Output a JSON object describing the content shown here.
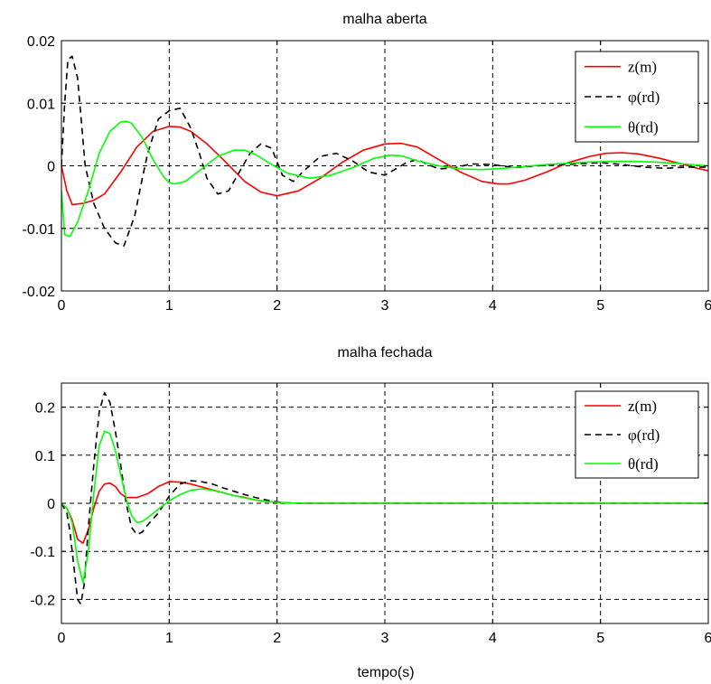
{
  "xlabel": "tempo(s)",
  "chart_data": [
    {
      "type": "line",
      "title": "malha aberta",
      "xlabel": "",
      "ylabel": "",
      "xlim": [
        0,
        6
      ],
      "ylim": [
        -0.02,
        0.02
      ],
      "xticks": [
        0,
        1,
        2,
        3,
        4,
        5,
        6
      ],
      "xtick_labels": [
        "0",
        "1",
        "2",
        "3",
        "4",
        "5",
        "6"
      ],
      "yticks": [
        -0.02,
        -0.01,
        0,
        0.01,
        0.02
      ],
      "ytick_labels": [
        "-0.02",
        "-0.01",
        "0",
        "0.01",
        "0.02"
      ],
      "grid": true,
      "legend_position": "top-right",
      "series": [
        {
          "name": "z(m)",
          "color": "#ff0000",
          "style": "solid",
          "x": [
            0,
            0.05,
            0.1,
            0.2,
            0.3,
            0.4,
            0.55,
            0.7,
            0.85,
            1.0,
            1.1,
            1.2,
            1.35,
            1.5,
            1.7,
            1.85,
            2.0,
            2.2,
            2.4,
            2.6,
            2.8,
            3.0,
            3.15,
            3.3,
            3.5,
            3.7,
            3.9,
            4.05,
            4.15,
            4.3,
            4.5,
            4.7,
            4.9,
            5.05,
            5.2,
            5.35,
            5.55,
            5.75,
            5.9,
            6.0
          ],
          "y": [
            0,
            -0.004,
            -0.0062,
            -0.006,
            -0.0055,
            -0.0045,
            -0.001,
            0.003,
            0.0055,
            0.0063,
            0.0062,
            0.0055,
            0.0035,
            0.001,
            -0.0025,
            -0.0042,
            -0.0048,
            -0.004,
            -0.002,
            0.0005,
            0.0025,
            0.0035,
            0.0036,
            0.003,
            0.001,
            -0.001,
            -0.0025,
            -0.0029,
            -0.0029,
            -0.0023,
            -0.001,
            0.0005,
            0.0015,
            0.002,
            0.0021,
            0.0019,
            0.0012,
            0.0003,
            -0.0004,
            -0.0008
          ]
        },
        {
          "name": "φ(rd)",
          "color": "#000000",
          "style": "dashed",
          "x": [
            0,
            0.03,
            0.06,
            0.1,
            0.15,
            0.22,
            0.3,
            0.4,
            0.5,
            0.58,
            0.68,
            0.75,
            0.8,
            0.9,
            1.0,
            1.1,
            1.2,
            1.28,
            1.35,
            1.45,
            1.55,
            1.65,
            1.75,
            1.85,
            1.95,
            2.05,
            2.15,
            2.25,
            2.4,
            2.55,
            2.7,
            2.85,
            3.0,
            3.1,
            3.2,
            3.3,
            3.4,
            3.5,
            3.65,
            3.8,
            4.0,
            4.2,
            4.5,
            4.8,
            5.0,
            5.2,
            5.4,
            5.6,
            5.8,
            6.0
          ],
          "y": [
            0,
            0.01,
            0.017,
            0.0175,
            0.014,
            0.0,
            -0.006,
            -0.01,
            -0.0123,
            -0.0128,
            -0.008,
            -0.002,
            0.002,
            0.0075,
            0.0088,
            0.0092,
            0.006,
            0.002,
            -0.002,
            -0.0045,
            -0.004,
            -0.001,
            0.002,
            0.0035,
            0.0028,
            -0.0015,
            -0.0025,
            -0.0008,
            0.0015,
            0.002,
            0.0008,
            -0.001,
            -0.0015,
            -0.0005,
            0.0005,
            0.001,
            0.0002,
            -0.0005,
            -0.0003,
            0.0003,
            0.0002,
            -0.0003,
            0.0001,
            0.0003,
            0.0005,
            0.0002,
            -0.0002,
            -0.0004,
            -0.0002,
            -0.0002
          ]
        },
        {
          "name": "θ(rd)",
          "color": "#00ff00",
          "style": "solid",
          "x": [
            0,
            0.03,
            0.08,
            0.15,
            0.25,
            0.35,
            0.45,
            0.55,
            0.6,
            0.65,
            0.75,
            0.85,
            0.95,
            1.0,
            1.05,
            1.15,
            1.3,
            1.45,
            1.6,
            1.7,
            1.8,
            1.95,
            2.1,
            2.3,
            2.5,
            2.7,
            2.9,
            3.05,
            3.15,
            3.3,
            3.5,
            3.7,
            3.9,
            4.1,
            4.3,
            4.5,
            4.7,
            4.9,
            5.1,
            5.3,
            5.5,
            5.7,
            5.9,
            6.0
          ],
          "y": [
            -0.004,
            -0.011,
            -0.0113,
            -0.009,
            -0.004,
            0.002,
            0.0055,
            0.007,
            0.0071,
            0.0068,
            0.0045,
            0.001,
            -0.0018,
            -0.0027,
            -0.0029,
            -0.0025,
            -0.0005,
            0.0015,
            0.0025,
            0.0025,
            0.0018,
            0.0002,
            -0.0012,
            -0.002,
            -0.0015,
            -0.0003,
            0.0012,
            0.0017,
            0.0016,
            0.0008,
            0.0,
            -0.0005,
            -0.0006,
            -0.0004,
            -0.0001,
            0.0002,
            0.0004,
            0.0006,
            0.0007,
            0.0007,
            0.0006,
            0.0004,
            0.0001,
            0.0
          ]
        }
      ]
    },
    {
      "type": "line",
      "title": "malha fechada",
      "xlabel": "tempo(s)",
      "ylabel": "",
      "xlim": [
        0,
        6
      ],
      "ylim": [
        -0.25,
        0.25
      ],
      "xticks": [
        0,
        1,
        2,
        3,
        4,
        5,
        6
      ],
      "xtick_labels": [
        "0",
        "1",
        "2",
        "3",
        "4",
        "5",
        "6"
      ],
      "yticks": [
        -0.2,
        -0.1,
        0,
        0.1,
        0.2
      ],
      "ytick_labels": [
        "-0.2",
        "-0.1",
        "0",
        "0.1",
        "0.2"
      ],
      "grid": true,
      "legend_position": "top-right",
      "series": [
        {
          "name": "z(m)",
          "color": "#ff0000",
          "style": "solid",
          "x": [
            0,
            0.05,
            0.1,
            0.15,
            0.2,
            0.25,
            0.3,
            0.35,
            0.4,
            0.45,
            0.5,
            0.55,
            0.6,
            0.7,
            0.8,
            0.9,
            1.0,
            1.1,
            1.2,
            1.3,
            1.4,
            1.5,
            1.6,
            1.7,
            1.8,
            1.9,
            2.0,
            2.1,
            2.2,
            3.0,
            4.0,
            5.0,
            6.0
          ],
          "y": [
            0,
            -0.01,
            -0.035,
            -0.075,
            -0.083,
            -0.055,
            -0.01,
            0.025,
            0.04,
            0.042,
            0.035,
            0.02,
            0.012,
            0.012,
            0.02,
            0.035,
            0.045,
            0.044,
            0.04,
            0.034,
            0.028,
            0.022,
            0.016,
            0.012,
            0.007,
            0.004,
            0.002,
            0.001,
            0.0,
            0.0,
            0.0,
            0.0,
            0.0
          ]
        },
        {
          "name": "φ(rd)",
          "color": "#000000",
          "style": "dashed",
          "x": [
            0,
            0.05,
            0.08,
            0.12,
            0.15,
            0.18,
            0.21,
            0.25,
            0.3,
            0.35,
            0.4,
            0.45,
            0.5,
            0.55,
            0.6,
            0.65,
            0.7,
            0.75,
            0.8,
            0.9,
            1.0,
            1.1,
            1.2,
            1.3,
            1.4,
            1.5,
            1.6,
            1.7,
            1.8,
            1.9,
            2.0,
            2.1,
            2.2,
            3.0,
            4.0,
            5.0,
            6.0
          ],
          "y": [
            0,
            -0.02,
            -0.06,
            -0.14,
            -0.2,
            -0.21,
            -0.17,
            -0.05,
            0.08,
            0.19,
            0.23,
            0.21,
            0.15,
            0.08,
            0.0,
            -0.05,
            -0.065,
            -0.06,
            -0.045,
            -0.02,
            0.015,
            0.04,
            0.047,
            0.045,
            0.04,
            0.032,
            0.025,
            0.018,
            0.012,
            0.007,
            0.003,
            0.001,
            0.0,
            0.0,
            0.0,
            0.0,
            0.0
          ]
        },
        {
          "name": "θ(rd)",
          "color": "#00ff00",
          "style": "solid",
          "x": [
            0,
            0.05,
            0.1,
            0.15,
            0.2,
            0.25,
            0.3,
            0.35,
            0.4,
            0.45,
            0.5,
            0.55,
            0.6,
            0.65,
            0.7,
            0.75,
            0.8,
            0.9,
            1.0,
            1.1,
            1.2,
            1.3,
            1.4,
            1.5,
            1.6,
            1.7,
            1.8,
            1.9,
            2.0,
            2.1,
            2.2,
            3.0,
            4.0,
            5.0,
            6.0
          ],
          "y": [
            0,
            -0.01,
            -0.04,
            -0.12,
            -0.165,
            -0.1,
            0.02,
            0.12,
            0.15,
            0.145,
            0.11,
            0.06,
            0.01,
            -0.025,
            -0.04,
            -0.038,
            -0.03,
            -0.012,
            0.005,
            0.018,
            0.027,
            0.03,
            0.027,
            0.022,
            0.016,
            0.011,
            0.007,
            0.004,
            0.002,
            0.001,
            0.0,
            0.0,
            0.0,
            0.0,
            0.0
          ]
        }
      ]
    }
  ]
}
